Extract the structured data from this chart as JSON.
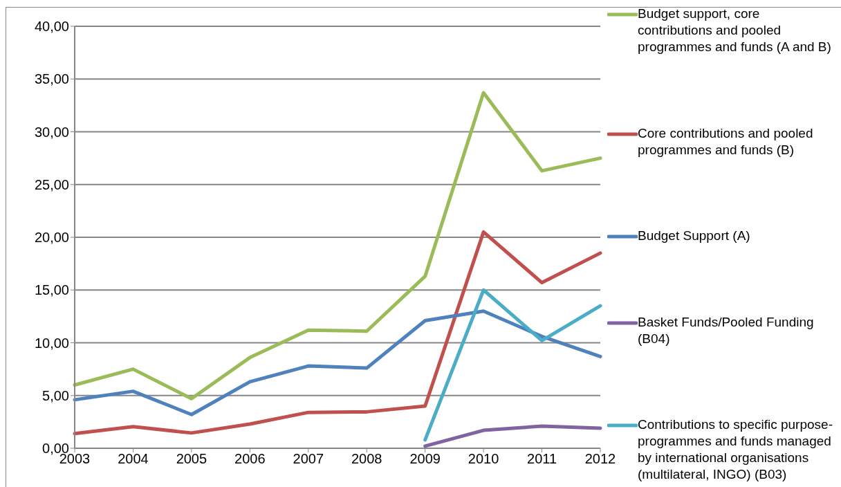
{
  "chart_data": {
    "type": "line",
    "categories": [
      "2003",
      "2004",
      "2005",
      "2006",
      "2007",
      "2008",
      "2009",
      "2010",
      "2011",
      "2012"
    ],
    "series": [
      {
        "name": "Budget support, core contributions and pooled programmes and funds (A and B)",
        "color": "#9bbb59",
        "values": [
          6.0,
          7.5,
          4.7,
          8.6,
          11.2,
          11.1,
          16.3,
          33.7,
          26.3,
          27.5
        ]
      },
      {
        "name": "Core contributions and pooled programmes and funds (B)",
        "color": "#c0504d",
        "values": [
          1.4,
          2.05,
          1.45,
          2.3,
          3.4,
          3.45,
          4.0,
          20.5,
          15.7,
          18.5
        ]
      },
      {
        "name": "Budget Support (A)",
        "color": "#4f81bd",
        "values": [
          4.6,
          5.4,
          3.2,
          6.3,
          7.8,
          7.6,
          12.1,
          13.0,
          10.6,
          8.7
        ]
      },
      {
        "name": "Basket Funds/Pooled Funding (B04)",
        "color": "#8064a2",
        "values": [
          null,
          null,
          null,
          null,
          null,
          null,
          0.2,
          1.7,
          2.1,
          1.9
        ]
      },
      {
        "name": "Contributions to specific purpose-programmes and funds managed by international organisations (multilateral, INGO) (B03)",
        "color": "#4bacc6",
        "values": [
          null,
          null,
          null,
          null,
          null,
          null,
          0.8,
          15.0,
          10.2,
          13.5
        ]
      }
    ],
    "ylim": [
      0,
      40
    ],
    "yticks": [
      {
        "value": 0,
        "label": "0,00"
      },
      {
        "value": 5,
        "label": "5,00"
      },
      {
        "value": 10,
        "label": "10,00"
      },
      {
        "value": 15,
        "label": "15,00"
      },
      {
        "value": 20,
        "label": "20,00"
      },
      {
        "value": 25,
        "label": "25,00"
      },
      {
        "value": 30,
        "label": "30,00"
      },
      {
        "value": 35,
        "label": "35,00"
      },
      {
        "value": 40,
        "label": "40,00"
      }
    ],
    "grid": "y",
    "legend": "right",
    "marker": "none",
    "line_style": "solid"
  }
}
